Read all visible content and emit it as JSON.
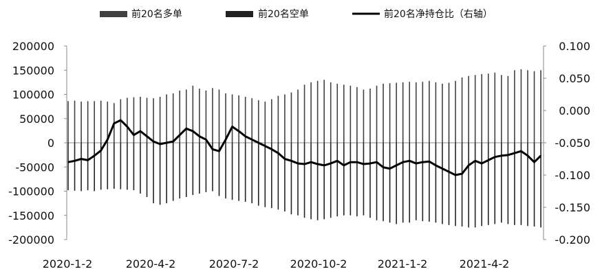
{
  "chart_data": {
    "type": "bar",
    "title": "",
    "legend": {
      "placement": "top",
      "entries": [
        {
          "label": "前20名多单",
          "kind": "bar",
          "color": "#404040"
        },
        {
          "label": "前20名空单",
          "kind": "bar",
          "color": "#222222"
        },
        {
          "label": "前20名净持仓比（右轴）",
          "kind": "line",
          "color": "#000000"
        }
      ]
    },
    "x_tick_labels": [
      "2020-1-2",
      "2020-4-2",
      "2020-7-2",
      "2020-10-2",
      "2021-1-2",
      "2021-4-2"
    ],
    "y_left": {
      "min": -200000,
      "max": 200000,
      "ticks": [
        200000,
        150000,
        100000,
        50000,
        0,
        -50000,
        -100000,
        -150000,
        -200000
      ],
      "tick_labels": [
        "200000",
        "150000",
        "100000",
        "50000",
        "0",
        "-50000",
        "-100000",
        "-150000",
        "-200000"
      ]
    },
    "y_right": {
      "min": -0.2,
      "max": 0.1,
      "ticks": [
        0.1,
        0.05,
        0.0,
        -0.05,
        -0.1,
        -0.15,
        -0.2
      ],
      "tick_labels": [
        "0.100",
        "0.050",
        "0.000",
        "-0.050",
        "-0.100",
        "-0.150",
        "-0.200"
      ]
    },
    "grid": false,
    "n_trading_days": 362,
    "series": [
      {
        "name": "前20名多单",
        "axis": "left",
        "sample_step_days": 5,
        "values": [
          86000,
          87000,
          85000,
          86000,
          86000,
          87000,
          85000,
          82000,
          90000,
          93000,
          94000,
          95000,
          93000,
          92000,
          95000,
          100000,
          102000,
          108000,
          110000,
          118000,
          112000,
          108000,
          113000,
          110000,
          102000,
          100000,
          98000,
          95000,
          92000,
          88000,
          85000,
          90000,
          97000,
          100000,
          104000,
          110000,
          120000,
          125000,
          128000,
          130000,
          125000,
          122000,
          120000,
          118000,
          115000,
          110000,
          112000,
          118000,
          122000,
          123000,
          124000,
          125000,
          126000,
          125000,
          126000,
          128000,
          125000,
          122000,
          124000,
          128000,
          135000,
          138000,
          140000,
          142000,
          143000,
          145000,
          140000,
          138000,
          150000,
          152000,
          150000,
          148000,
          150000
        ]
      },
      {
        "name": "前20名空单",
        "axis": "left",
        "sample_step_days": 5,
        "values": [
          -98000,
          -99000,
          -100000,
          -98000,
          -100000,
          -97000,
          -96000,
          -95000,
          -96000,
          -97000,
          -98000,
          -105000,
          -112000,
          -125000,
          -128000,
          -125000,
          -120000,
          -115000,
          -112000,
          -108000,
          -105000,
          -102000,
          -100000,
          -110000,
          -115000,
          -118000,
          -120000,
          -122000,
          -125000,
          -130000,
          -133000,
          -135000,
          -138000,
          -142000,
          -148000,
          -150000,
          -155000,
          -158000,
          -160000,
          -158000,
          -155000,
          -152000,
          -150000,
          -150000,
          -152000,
          -150000,
          -155000,
          -160000,
          -162000,
          -165000,
          -168000,
          -165000,
          -165000,
          -160000,
          -162000,
          -163000,
          -165000,
          -168000,
          -170000,
          -172000,
          -173000,
          -175000,
          -175000,
          -172000,
          -170000,
          -168000,
          -165000,
          -168000,
          -170000,
          -170000,
          -172000,
          -173000,
          -175000
        ]
      },
      {
        "name": "前20名净持仓比（右轴）",
        "axis": "right",
        "sample_step_days": 5,
        "values": [
          -0.08,
          -0.078,
          -0.075,
          -0.077,
          -0.07,
          -0.062,
          -0.045,
          -0.02,
          -0.015,
          -0.025,
          -0.038,
          -0.032,
          -0.04,
          -0.048,
          -0.052,
          -0.05,
          -0.048,
          -0.038,
          -0.028,
          -0.032,
          -0.04,
          -0.045,
          -0.06,
          -0.063,
          -0.045,
          -0.025,
          -0.032,
          -0.04,
          -0.045,
          -0.05,
          -0.055,
          -0.06,
          -0.066,
          -0.075,
          -0.078,
          -0.082,
          -0.083,
          -0.08,
          -0.083,
          -0.085,
          -0.082,
          -0.078,
          -0.085,
          -0.08,
          -0.08,
          -0.083,
          -0.082,
          -0.08,
          -0.088,
          -0.09,
          -0.085,
          -0.08,
          -0.078,
          -0.082,
          -0.08,
          -0.079,
          -0.085,
          -0.09,
          -0.095,
          -0.1,
          -0.098,
          -0.085,
          -0.078,
          -0.082,
          -0.077,
          -0.072,
          -0.07,
          -0.069,
          -0.066,
          -0.063,
          -0.07,
          -0.08,
          -0.07
        ]
      }
    ]
  }
}
